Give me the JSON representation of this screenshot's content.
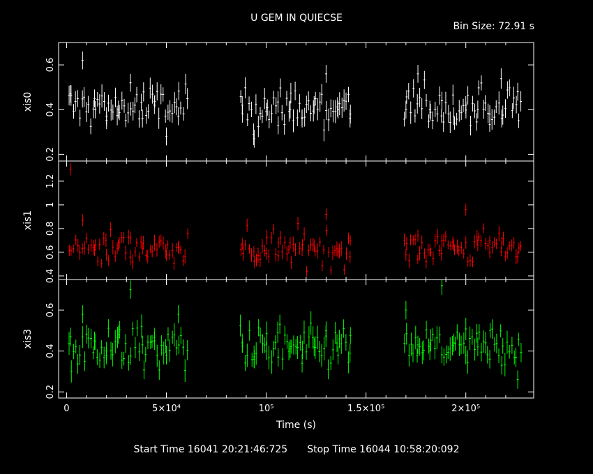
{
  "header": {
    "title": "U GEM IN QUIECSE",
    "bin_size": "Bin Size: 72.91 s"
  },
  "footer": {
    "start_time": "Start Time 16041 20:21:46:725",
    "stop_time": "Stop Time 16044 10:58:20:092"
  },
  "chart_data": {
    "type": "scatter",
    "xlabel": "Time (s)",
    "xlim": [
      -4000,
      234000
    ],
    "x_ticks": [
      {
        "value": 0,
        "label": "0"
      },
      {
        "value": 50000,
        "label": "5×10⁴"
      },
      {
        "value": 100000,
        "label": "10⁵"
      },
      {
        "value": 150000,
        "label": "1.5×10⁵"
      },
      {
        "value": 200000,
        "label": "2×10⁵"
      }
    ],
    "segments": [
      [
        1000,
        61000
      ],
      [
        87000,
        143000
      ],
      [
        169000,
        228000
      ]
    ],
    "bin_size_s": 72.91,
    "panels": [
      {
        "name": "xis0",
        "ylabel": "xis0",
        "color": "#ffffff",
        "ylim": [
          0.17,
          0.7
        ],
        "ticks": [
          0.2,
          0.4,
          0.6
        ],
        "mean": 0.41,
        "scatter": 0.075,
        "err": 0.04,
        "series": [
          {
            "x": 2000,
            "y": 0.47
          },
          {
            "x": 8000,
            "y": 0.62
          },
          {
            "x": 14000,
            "y": 0.45
          },
          {
            "x": 20000,
            "y": 0.37
          },
          {
            "x": 26000,
            "y": 0.4
          },
          {
            "x": 32000,
            "y": 0.52
          },
          {
            "x": 38000,
            "y": 0.36
          },
          {
            "x": 44000,
            "y": 0.42
          },
          {
            "x": 50000,
            "y": 0.28
          },
          {
            "x": 56000,
            "y": 0.37
          },
          {
            "x": 88000,
            "y": 0.42
          },
          {
            "x": 94000,
            "y": 0.27
          },
          {
            "x": 100000,
            "y": 0.39
          },
          {
            "x": 106000,
            "y": 0.33
          },
          {
            "x": 112000,
            "y": 0.4
          },
          {
            "x": 118000,
            "y": 0.36
          },
          {
            "x": 124000,
            "y": 0.42
          },
          {
            "x": 130000,
            "y": 0.56
          },
          {
            "x": 136000,
            "y": 0.4
          },
          {
            "x": 142000,
            "y": 0.36
          },
          {
            "x": 170000,
            "y": 0.4
          },
          {
            "x": 176000,
            "y": 0.56
          },
          {
            "x": 182000,
            "y": 0.4
          },
          {
            "x": 188000,
            "y": 0.44
          },
          {
            "x": 194000,
            "y": 0.37
          },
          {
            "x": 200000,
            "y": 0.42
          },
          {
            "x": 206000,
            "y": 0.4
          },
          {
            "x": 212000,
            "y": 0.38
          },
          {
            "x": 218000,
            "y": 0.36
          },
          {
            "x": 226000,
            "y": 0.48
          }
        ]
      },
      {
        "name": "xis1",
        "ylabel": "xis1",
        "color": "#ff0000",
        "ylim": [
          0.37,
          1.37
        ],
        "ticks": [
          0.4,
          0.6,
          0.8,
          1,
          1.2
        ],
        "mean": 0.64,
        "scatter": 0.11,
        "err": 0.05,
        "series": [
          {
            "x": 2000,
            "y": 1.3
          },
          {
            "x": 8000,
            "y": 0.87
          },
          {
            "x": 14000,
            "y": 0.62
          },
          {
            "x": 20000,
            "y": 0.58
          },
          {
            "x": 26000,
            "y": 0.66
          },
          {
            "x": 32000,
            "y": 0.72
          },
          {
            "x": 38000,
            "y": 0.63
          },
          {
            "x": 44000,
            "y": 0.66
          },
          {
            "x": 50000,
            "y": 0.58
          },
          {
            "x": 56000,
            "y": 0.64
          },
          {
            "x": 88000,
            "y": 0.67
          },
          {
            "x": 94000,
            "y": 0.52
          },
          {
            "x": 100000,
            "y": 0.59
          },
          {
            "x": 106000,
            "y": 0.57
          },
          {
            "x": 112000,
            "y": 0.68
          },
          {
            "x": 118000,
            "y": 0.62
          },
          {
            "x": 124000,
            "y": 0.66
          },
          {
            "x": 130000,
            "y": 0.92
          },
          {
            "x": 136000,
            "y": 0.6
          },
          {
            "x": 142000,
            "y": 0.56
          },
          {
            "x": 170000,
            "y": 0.58
          },
          {
            "x": 176000,
            "y": 0.74
          },
          {
            "x": 182000,
            "y": 0.62
          },
          {
            "x": 188000,
            "y": 0.7
          },
          {
            "x": 194000,
            "y": 0.66
          },
          {
            "x": 200000,
            "y": 0.96
          },
          {
            "x": 206000,
            "y": 0.66
          },
          {
            "x": 212000,
            "y": 0.6
          },
          {
            "x": 218000,
            "y": 0.68
          },
          {
            "x": 226000,
            "y": 0.56
          }
        ]
      },
      {
        "name": "xis3",
        "ylabel": "xis3",
        "color": "#00ff00",
        "ylim": [
          0.17,
          0.75
        ],
        "ticks": [
          0.2,
          0.4,
          0.6
        ],
        "mean": 0.42,
        "scatter": 0.08,
        "err": 0.045,
        "series": [
          {
            "x": 2000,
            "y": 0.47
          },
          {
            "x": 8000,
            "y": 0.58
          },
          {
            "x": 14000,
            "y": 0.45
          },
          {
            "x": 20000,
            "y": 0.4
          },
          {
            "x": 26000,
            "y": 0.48
          },
          {
            "x": 32000,
            "y": 0.7
          },
          {
            "x": 38000,
            "y": 0.43
          },
          {
            "x": 44000,
            "y": 0.45
          },
          {
            "x": 50000,
            "y": 0.38
          },
          {
            "x": 56000,
            "y": 0.58
          },
          {
            "x": 88000,
            "y": 0.44
          },
          {
            "x": 94000,
            "y": 0.36
          },
          {
            "x": 100000,
            "y": 0.4
          },
          {
            "x": 106000,
            "y": 0.37
          },
          {
            "x": 112000,
            "y": 0.41
          },
          {
            "x": 118000,
            "y": 0.34
          },
          {
            "x": 124000,
            "y": 0.42
          },
          {
            "x": 130000,
            "y": 0.5
          },
          {
            "x": 136000,
            "y": 0.38
          },
          {
            "x": 142000,
            "y": 0.39
          },
          {
            "x": 170000,
            "y": 0.6
          },
          {
            "x": 176000,
            "y": 0.43
          },
          {
            "x": 182000,
            "y": 0.4
          },
          {
            "x": 188000,
            "y": 0.72
          },
          {
            "x": 194000,
            "y": 0.44
          },
          {
            "x": 200000,
            "y": 0.38
          },
          {
            "x": 206000,
            "y": 0.42
          },
          {
            "x": 212000,
            "y": 0.36
          },
          {
            "x": 218000,
            "y": 0.33
          },
          {
            "x": 226000,
            "y": 0.26
          }
        ]
      }
    ]
  }
}
